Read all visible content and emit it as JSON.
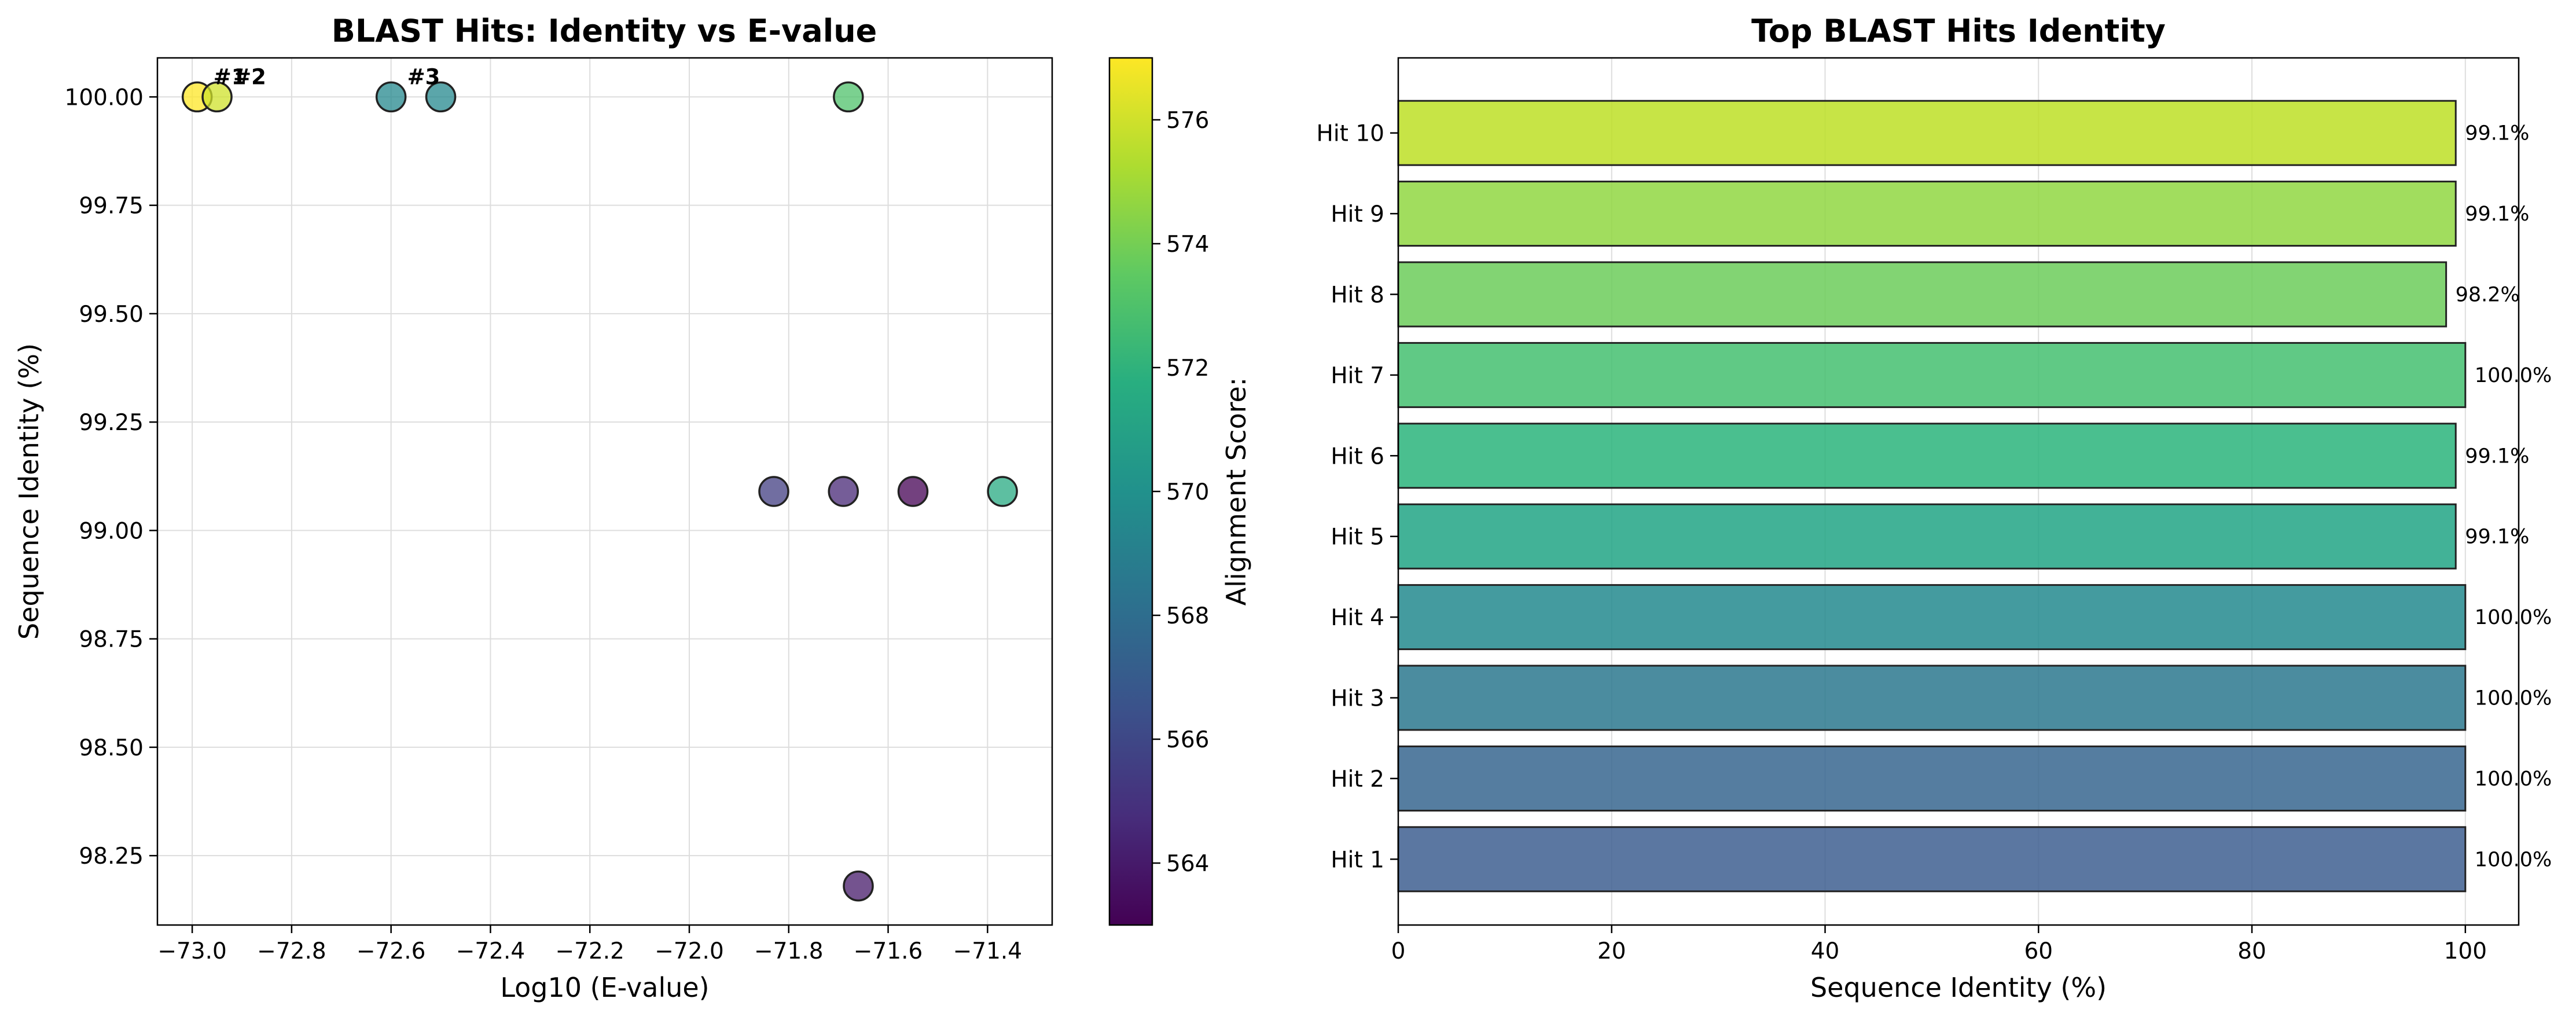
{
  "colors": {
    "grid": "#dddddd",
    "axis": "#000000",
    "marker_edge": "#222222"
  },
  "chart_data": [
    {
      "type": "scatter",
      "title": "BLAST Hits: Identity vs E-value",
      "xlabel": "Log10 (E-value)",
      "ylabel": "Sequence Identity (%)",
      "xlim": [
        -73.07,
        -71.27
      ],
      "ylim": [
        98.09,
        100.09
      ],
      "xticks": [
        -73.0,
        -72.8,
        -72.6,
        -72.4,
        -72.2,
        -72.0,
        -71.8,
        -71.6,
        -71.4
      ],
      "xtick_labels": [
        "−73.0",
        "−72.8",
        "−72.6",
        "−72.4",
        "−72.2",
        "−72.0",
        "−71.8",
        "−71.6",
        "−71.4"
      ],
      "yticks": [
        98.25,
        98.5,
        98.75,
        99.0,
        99.25,
        99.5,
        99.75,
        100.0
      ],
      "ytick_labels": [
        "98.25",
        "98.50",
        "98.75",
        "99.00",
        "99.25",
        "99.50",
        "99.75",
        "100.00"
      ],
      "grid": true,
      "colormap": "viridis",
      "points": [
        {
          "x": -72.99,
          "y": 100.0,
          "score": 577
        },
        {
          "x": -72.95,
          "y": 100.0,
          "score": 576
        },
        {
          "x": -72.6,
          "y": 100.0,
          "score": 569.5
        },
        {
          "x": -72.5,
          "y": 100.0,
          "score": 569.5
        },
        {
          "x": -71.68,
          "y": 100.0,
          "score": 573
        },
        {
          "x": -71.83,
          "y": 99.09,
          "score": 565.5
        },
        {
          "x": -71.69,
          "y": 99.09,
          "score": 564.5
        },
        {
          "x": -71.55,
          "y": 99.09,
          "score": 563
        },
        {
          "x": -71.37,
          "y": 99.09,
          "score": 571.5
        },
        {
          "x": -71.66,
          "y": 98.18,
          "score": 564
        }
      ],
      "annotations": [
        {
          "text": "#1",
          "x": -72.99,
          "y": 100.0
        },
        {
          "text": "#2",
          "x": -72.95,
          "y": 100.0
        },
        {
          "text": "#3",
          "x": -72.6,
          "y": 100.0
        }
      ],
      "colorbar": {
        "label": "Alignment Score:",
        "range": [
          563,
          577
        ],
        "ticks": [
          564,
          566,
          568,
          570,
          572,
          574,
          576
        ],
        "tick_labels": [
          "564",
          "566",
          "568",
          "570",
          "572",
          "574",
          "576"
        ]
      }
    },
    {
      "type": "bar",
      "orientation": "horizontal",
      "title": "Top BLAST Hits Identity",
      "xlabel": "Sequence Identity (%)",
      "ylabel": "",
      "xlim": [
        0,
        105
      ],
      "xticks": [
        0,
        20,
        40,
        60,
        80,
        100
      ],
      "xtick_labels": [
        "0",
        "20",
        "40",
        "60",
        "80",
        "100"
      ],
      "grid": true,
      "categories": [
        "Hit 1",
        "Hit 2",
        "Hit 3",
        "Hit 4",
        "Hit 5",
        "Hit 6",
        "Hit 7",
        "Hit 8",
        "Hit 9",
        "Hit 10"
      ],
      "values": [
        100.0,
        100.0,
        100.0,
        100.0,
        99.1,
        99.1,
        100.0,
        98.2,
        99.1,
        99.1
      ],
      "value_labels": [
        "100.0%",
        "100.0%",
        "100.0%",
        "100.0%",
        "99.1%",
        "99.1%",
        "100.0%",
        "98.2%",
        "99.1%",
        "99.1%"
      ],
      "bar_colors": [
        "#3e5f91",
        "#37668f",
        "#2b788e",
        "#23898e",
        "#21a585",
        "#2ab47b",
        "#44bf70",
        "#6ccd5a",
        "#91d742",
        "#bddf26"
      ]
    }
  ]
}
